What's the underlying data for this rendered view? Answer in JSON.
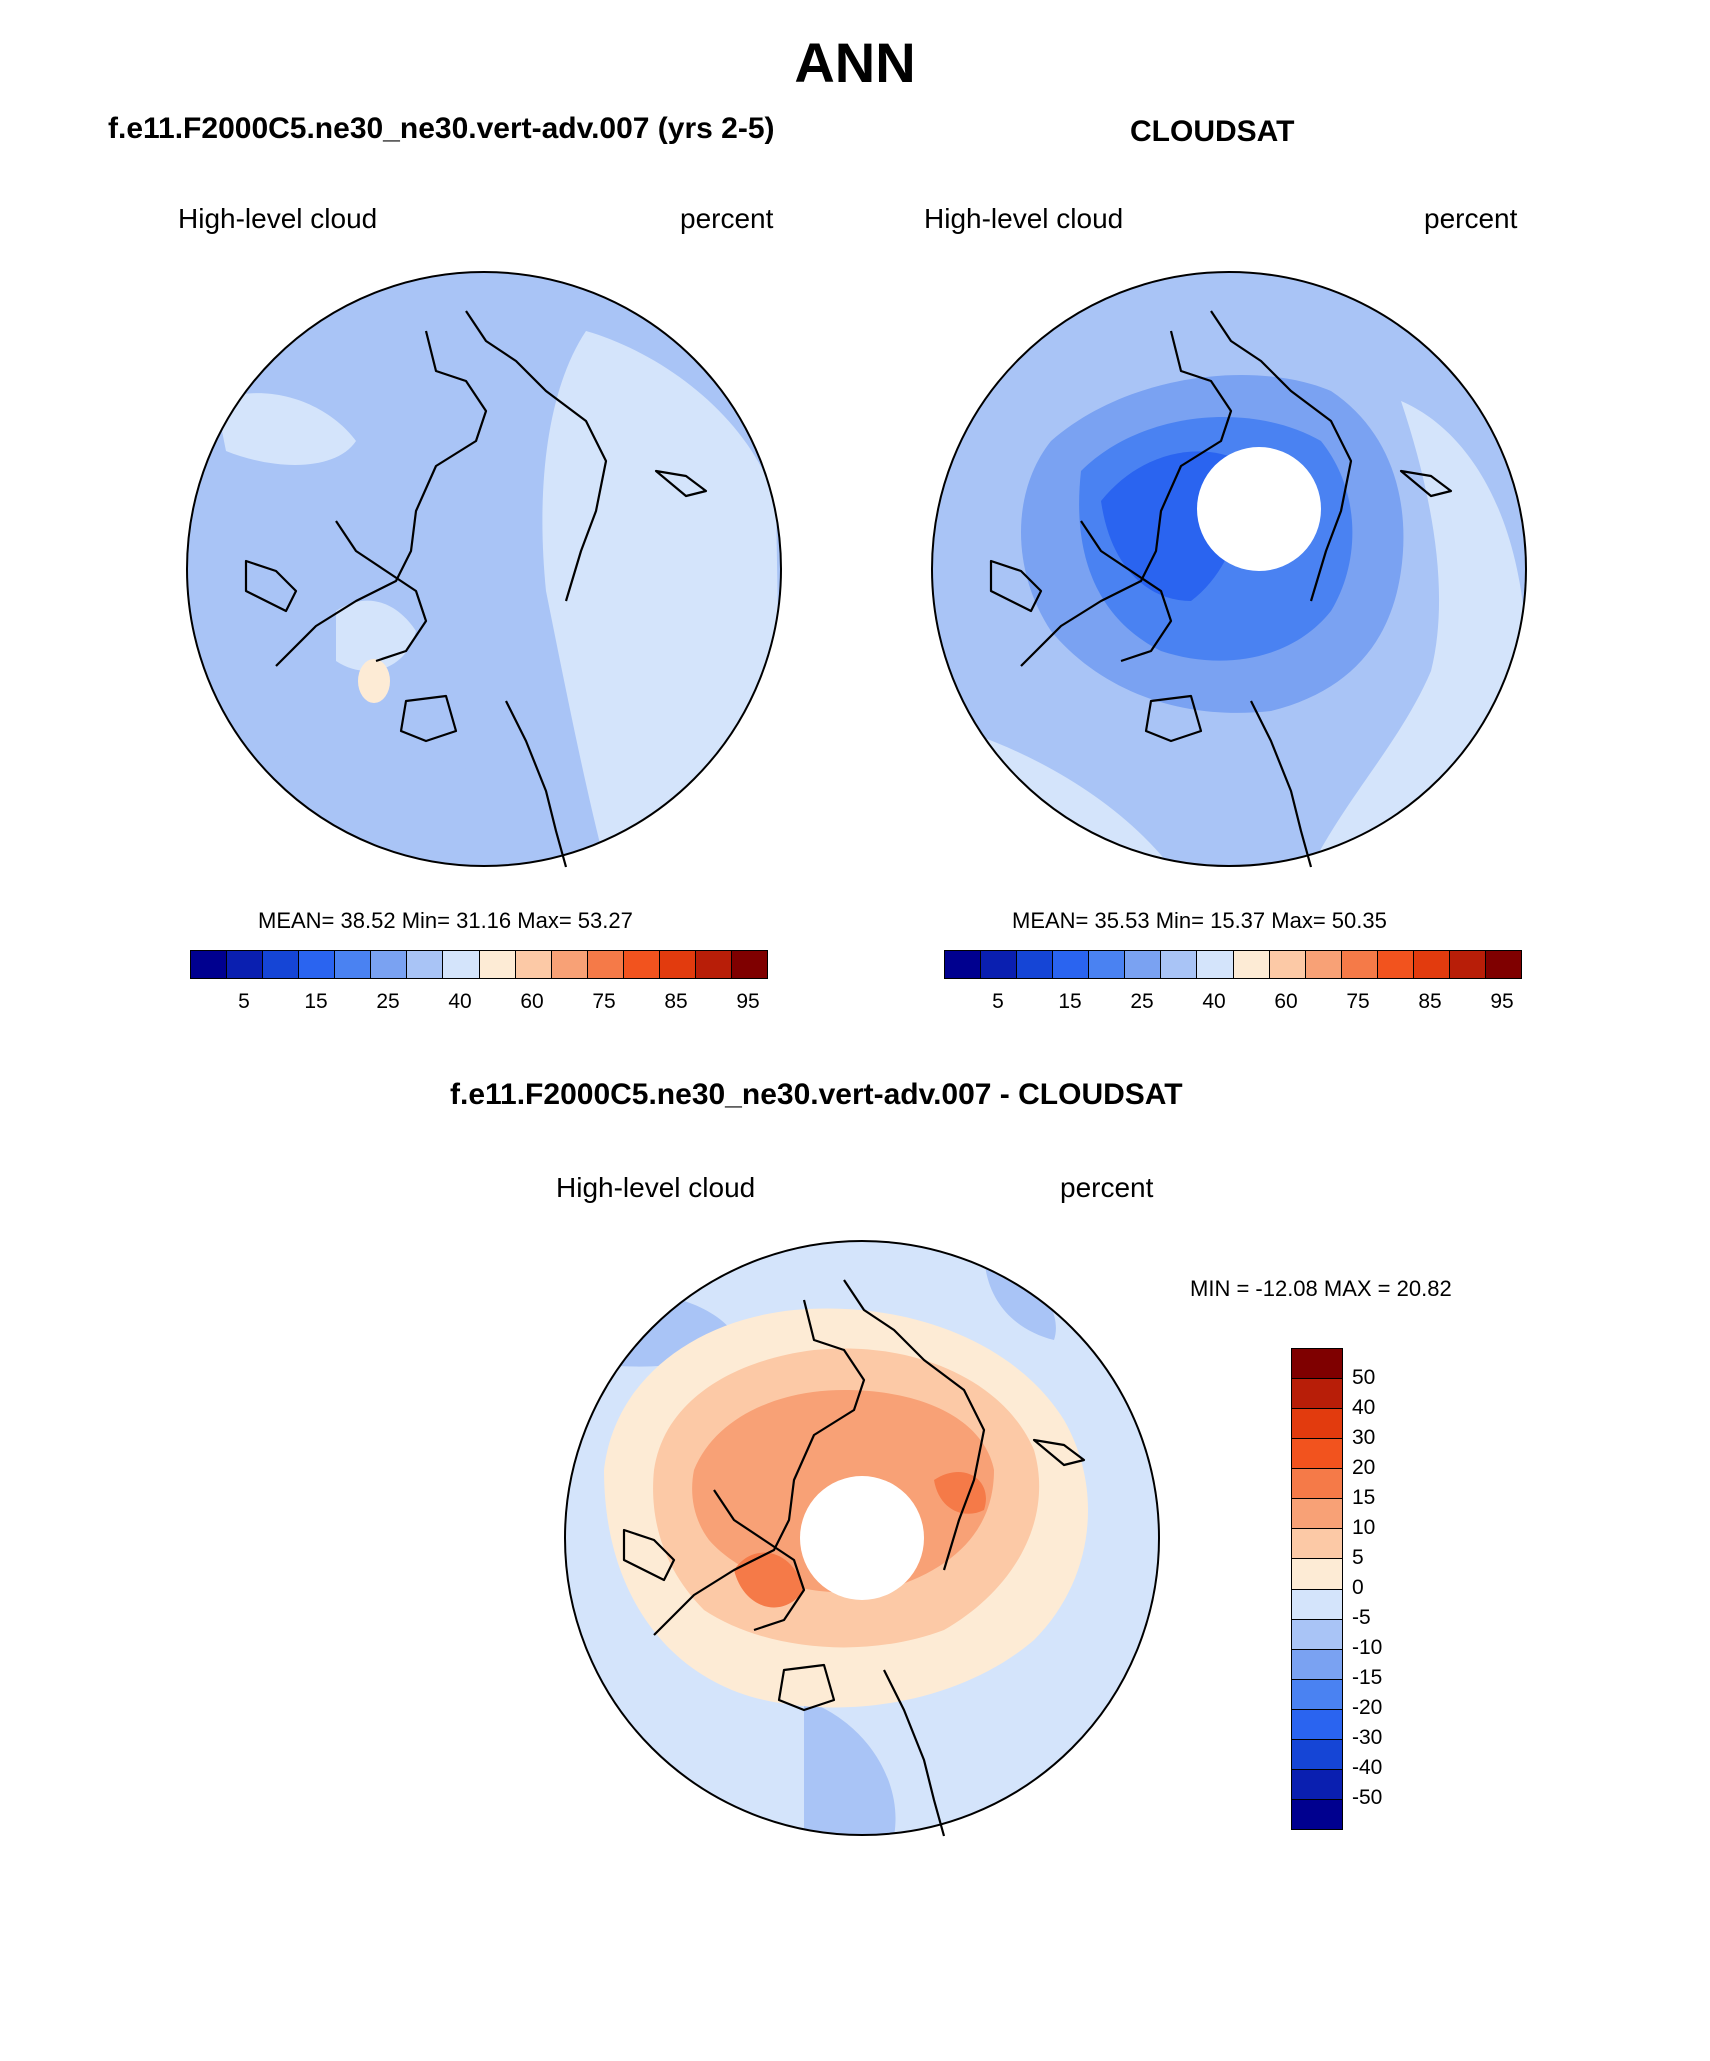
{
  "figure": {
    "season": "ANN"
  },
  "panels": [
    {
      "title": "f.e11.F2000C5.ne30_ne30.vert-adv.007 (yrs 2-5)",
      "variable": "High-level cloud",
      "units": "percent",
      "stats": "MEAN=  38.52  Min=  31.16  Max=  53.27",
      "mean": 38.52,
      "min": 31.16,
      "max": 53.27
    },
    {
      "title": "CLOUDSAT",
      "variable": "High-level cloud",
      "units": "percent",
      "stats": "MEAN=  35.53  Min=  15.37  Max=  50.35",
      "mean": 35.53,
      "min": 15.37,
      "max": 50.35
    },
    {
      "title": "f.e11.F2000C5.ne30_ne30.vert-adv.007 - CLOUDSAT",
      "variable": "High-level cloud",
      "units": "percent",
      "stats": "MIN = -12.08 MAX =  20.82",
      "min": -12.08,
      "max": 20.82
    }
  ],
  "colorbars": {
    "absolute": {
      "tick_labels": [
        "5",
        "15",
        "25",
        "40",
        "60",
        "75",
        "85",
        "95"
      ],
      "colors": [
        "#00008f",
        "#0a1fb0",
        "#1545d6",
        "#2a64f0",
        "#4a82f2",
        "#7aa2f2",
        "#a9c4f6",
        "#d4e4fb",
        "#fdebd5",
        "#fcc9a6",
        "#f8a176",
        "#f57a48",
        "#f2531e",
        "#e23b0e",
        "#b81e08",
        "#7f0000"
      ]
    },
    "difference": {
      "tick_labels": [
        "50",
        "40",
        "30",
        "20",
        "15",
        "10",
        "5",
        "0",
        "-5",
        "-10",
        "-15",
        "-20",
        "-30",
        "-40",
        "-50"
      ],
      "colors": [
        "#7f0000",
        "#b81e08",
        "#e23b0e",
        "#f2531e",
        "#f57a48",
        "#f8a176",
        "#fcc9a6",
        "#fdebd5",
        "#d4e4fb",
        "#a9c4f6",
        "#7aa2f2",
        "#4a82f2",
        "#2a64f0",
        "#1545d6",
        "#0a1fb0",
        "#00008f"
      ]
    }
  },
  "map_colors": {
    "light_blue": "#d4e4fb",
    "mid_blue": "#a9c4f6",
    "blue": "#7aa2f2",
    "deep_blue": "#4a82f2",
    "darker_blue": "#2a64f0",
    "pale_orange": "#fdebd5",
    "light_orange": "#fcc9a6",
    "orange": "#f8a176",
    "dark_orange": "#f57a48"
  }
}
